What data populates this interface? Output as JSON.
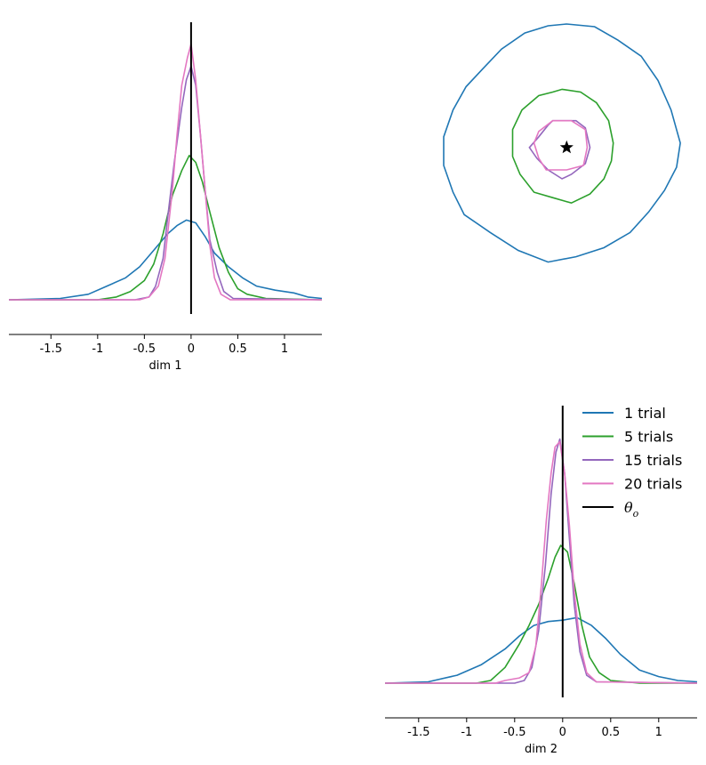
{
  "chart_data": [
    {
      "type": "line",
      "panel": "marginal-dim-1",
      "xlabel": "dim 1",
      "xlim": [
        -1.95,
        1.4
      ],
      "ylim": [
        0,
        1
      ],
      "xticks": [
        -1.5,
        -1,
        -0.5,
        0,
        0.5,
        1
      ],
      "xtick_labels": [
        "-1.5",
        "-1",
        "-0.5",
        "0",
        "0.5",
        "1"
      ],
      "reference_x": 0,
      "series": [
        {
          "key": "t1",
          "color": "#1f77b4",
          "points": [
            [
              -1.95,
              0.0
            ],
            [
              -1.4,
              0.005
            ],
            [
              -1.1,
              0.02
            ],
            [
              -0.9,
              0.05
            ],
            [
              -0.7,
              0.08
            ],
            [
              -0.55,
              0.12
            ],
            [
              -0.4,
              0.18
            ],
            [
              -0.25,
              0.24
            ],
            [
              -0.15,
              0.27
            ],
            [
              -0.05,
              0.29
            ],
            [
              0.05,
              0.28
            ],
            [
              0.15,
              0.23
            ],
            [
              0.25,
              0.17
            ],
            [
              0.4,
              0.12
            ],
            [
              0.55,
              0.08
            ],
            [
              0.7,
              0.05
            ],
            [
              0.9,
              0.035
            ],
            [
              1.1,
              0.025
            ],
            [
              1.25,
              0.01
            ],
            [
              1.4,
              0.005
            ]
          ]
        },
        {
          "key": "t5",
          "color": "#2ca02c",
          "points": [
            [
              -1.95,
              0.0
            ],
            [
              -1.0,
              0.0
            ],
            [
              -0.8,
              0.01
            ],
            [
              -0.65,
              0.03
            ],
            [
              -0.5,
              0.07
            ],
            [
              -0.4,
              0.13
            ],
            [
              -0.3,
              0.24
            ],
            [
              -0.2,
              0.38
            ],
            [
              -0.1,
              0.47
            ],
            [
              -0.02,
              0.525
            ],
            [
              0.05,
              0.5
            ],
            [
              0.12,
              0.43
            ],
            [
              0.2,
              0.32
            ],
            [
              0.3,
              0.19
            ],
            [
              0.4,
              0.1
            ],
            [
              0.5,
              0.04
            ],
            [
              0.6,
              0.02
            ],
            [
              0.8,
              0.005
            ],
            [
              1.4,
              0.0
            ]
          ]
        },
        {
          "key": "t15",
          "color": "#9467bd",
          "points": [
            [
              -1.95,
              0.0
            ],
            [
              -0.6,
              0.0
            ],
            [
              -0.45,
              0.01
            ],
            [
              -0.38,
              0.05
            ],
            [
              -0.3,
              0.15
            ],
            [
              -0.25,
              0.3
            ],
            [
              -0.18,
              0.5
            ],
            [
              -0.1,
              0.7
            ],
            [
              -0.05,
              0.8
            ],
            [
              0.0,
              0.85
            ],
            [
              0.05,
              0.78
            ],
            [
              0.1,
              0.6
            ],
            [
              0.15,
              0.4
            ],
            [
              0.2,
              0.22
            ],
            [
              0.28,
              0.1
            ],
            [
              0.35,
              0.03
            ],
            [
              0.45,
              0.005
            ],
            [
              1.4,
              0.0
            ]
          ]
        },
        {
          "key": "t20",
          "color": "#e377c2",
          "points": [
            [
              -1.95,
              0.0
            ],
            [
              -0.55,
              0.0
            ],
            [
              -0.45,
              0.01
            ],
            [
              -0.35,
              0.05
            ],
            [
              -0.28,
              0.15
            ],
            [
              -0.2,
              0.4
            ],
            [
              -0.15,
              0.6
            ],
            [
              -0.1,
              0.78
            ],
            [
              -0.04,
              0.88
            ],
            [
              0.0,
              0.93
            ],
            [
              0.05,
              0.8
            ],
            [
              0.1,
              0.6
            ],
            [
              0.15,
              0.4
            ],
            [
              0.2,
              0.2
            ],
            [
              0.25,
              0.08
            ],
            [
              0.32,
              0.02
            ],
            [
              0.42,
              0.0
            ],
            [
              1.4,
              0.0
            ]
          ]
        }
      ]
    },
    {
      "type": "line",
      "panel": "joint-contours",
      "xlim": [
        -1.95,
        1.4
      ],
      "ylim": [
        -1.95,
        1.4
      ],
      "true_point": [
        0,
        0
      ],
      "series": [
        {
          "key": "t1",
          "color": "#1f77b4",
          "shape": "closed",
          "points": [
            [
              0.0,
              1.38
            ],
            [
              0.3,
              1.35
            ],
            [
              0.55,
              1.2
            ],
            [
              0.8,
              1.02
            ],
            [
              0.98,
              0.75
            ],
            [
              1.12,
              0.42
            ],
            [
              1.22,
              0.05
            ],
            [
              1.18,
              -0.22
            ],
            [
              1.05,
              -0.48
            ],
            [
              0.88,
              -0.72
            ],
            [
              0.68,
              -0.95
            ],
            [
              0.4,
              -1.12
            ],
            [
              0.1,
              -1.22
            ],
            [
              -0.2,
              -1.28
            ],
            [
              -0.52,
              -1.15
            ],
            [
              -0.82,
              -0.95
            ],
            [
              -1.1,
              -0.75
            ],
            [
              -1.22,
              -0.5
            ],
            [
              -1.32,
              -0.2
            ],
            [
              -1.32,
              0.12
            ],
            [
              -1.22,
              0.42
            ],
            [
              -1.08,
              0.68
            ],
            [
              -0.9,
              0.88
            ],
            [
              -0.7,
              1.1
            ],
            [
              -0.45,
              1.28
            ],
            [
              -0.2,
              1.36
            ]
          ]
        },
        {
          "key": "t5",
          "color": "#2ca02c",
          "shape": "closed",
          "points": [
            [
              -0.05,
              0.65
            ],
            [
              0.15,
              0.62
            ],
            [
              0.32,
              0.5
            ],
            [
              0.45,
              0.3
            ],
            [
              0.5,
              0.05
            ],
            [
              0.48,
              -0.15
            ],
            [
              0.4,
              -0.35
            ],
            [
              0.25,
              -0.52
            ],
            [
              0.05,
              -0.62
            ],
            [
              -0.15,
              -0.56
            ],
            [
              -0.35,
              -0.5
            ],
            [
              -0.5,
              -0.3
            ],
            [
              -0.58,
              -0.1
            ],
            [
              -0.58,
              0.2
            ],
            [
              -0.48,
              0.42
            ],
            [
              -0.3,
              0.58
            ],
            [
              -0.15,
              0.62
            ]
          ]
        },
        {
          "key": "t15",
          "color": "#9467bd",
          "shape": "closed",
          "points": [
            [
              -0.15,
              0.3
            ],
            [
              0.1,
              0.3
            ],
            [
              0.2,
              0.22
            ],
            [
              0.25,
              0.0
            ],
            [
              0.2,
              -0.18
            ],
            [
              0.05,
              -0.3
            ],
            [
              -0.05,
              -0.35
            ],
            [
              -0.2,
              -0.25
            ],
            [
              -0.32,
              -0.12
            ],
            [
              -0.4,
              0.0
            ],
            [
              -0.3,
              0.12
            ],
            [
              -0.2,
              0.25
            ]
          ]
        },
        {
          "key": "t20",
          "color": "#e377c2",
          "shape": "closed",
          "points": [
            [
              -0.15,
              0.3
            ],
            [
              0.05,
              0.3
            ],
            [
              0.2,
              0.2
            ],
            [
              0.22,
              0.0
            ],
            [
              0.18,
              -0.2
            ],
            [
              0.0,
              -0.25
            ],
            [
              -0.22,
              -0.25
            ],
            [
              -0.3,
              -0.12
            ],
            [
              -0.35,
              0.05
            ],
            [
              -0.3,
              0.18
            ]
          ]
        }
      ]
    },
    {
      "type": "line",
      "panel": "marginal-dim-2",
      "xlabel": "dim 2",
      "xlim": [
        -1.85,
        1.4
      ],
      "ylim": [
        0,
        1
      ],
      "xticks": [
        -1.5,
        -1,
        -0.5,
        0,
        0.5,
        1
      ],
      "xtick_labels": [
        "-1.5",
        "-1",
        "-0.5",
        "0",
        "0.5",
        "1"
      ],
      "reference_x": 0,
      "series": [
        {
          "key": "t1",
          "color": "#1f77b4",
          "points": [
            [
              -1.85,
              0.0
            ],
            [
              -1.4,
              0.005
            ],
            [
              -1.1,
              0.03
            ],
            [
              -0.85,
              0.07
            ],
            [
              -0.6,
              0.13
            ],
            [
              -0.45,
              0.18
            ],
            [
              -0.3,
              0.22
            ],
            [
              -0.15,
              0.235
            ],
            [
              0.0,
              0.24
            ],
            [
              0.15,
              0.25
            ],
            [
              0.3,
              0.22
            ],
            [
              0.45,
              0.17
            ],
            [
              0.6,
              0.11
            ],
            [
              0.8,
              0.05
            ],
            [
              1.0,
              0.025
            ],
            [
              1.2,
              0.01
            ],
            [
              1.4,
              0.005
            ]
          ]
        },
        {
          "key": "t5",
          "color": "#2ca02c",
          "points": [
            [
              -1.85,
              0.0
            ],
            [
              -0.9,
              0.0
            ],
            [
              -0.75,
              0.01
            ],
            [
              -0.6,
              0.06
            ],
            [
              -0.45,
              0.15
            ],
            [
              -0.35,
              0.22
            ],
            [
              -0.25,
              0.3
            ],
            [
              -0.15,
              0.4
            ],
            [
              -0.08,
              0.48
            ],
            [
              -0.02,
              0.525
            ],
            [
              0.05,
              0.5
            ],
            [
              0.12,
              0.38
            ],
            [
              0.2,
              0.22
            ],
            [
              0.28,
              0.1
            ],
            [
              0.38,
              0.04
            ],
            [
              0.5,
              0.01
            ],
            [
              0.65,
              0.005
            ],
            [
              0.8,
              0.0
            ],
            [
              1.4,
              0.0
            ]
          ]
        },
        {
          "key": "t15",
          "color": "#9467bd",
          "points": [
            [
              -1.85,
              0.0
            ],
            [
              -0.5,
              0.0
            ],
            [
              -0.4,
              0.01
            ],
            [
              -0.32,
              0.06
            ],
            [
              -0.25,
              0.2
            ],
            [
              -0.18,
              0.45
            ],
            [
              -0.12,
              0.72
            ],
            [
              -0.07,
              0.88
            ],
            [
              -0.03,
              0.93
            ],
            [
              0.02,
              0.8
            ],
            [
              0.07,
              0.55
            ],
            [
              0.12,
              0.3
            ],
            [
              0.18,
              0.12
            ],
            [
              0.25,
              0.03
            ],
            [
              0.35,
              0.005
            ],
            [
              1.4,
              0.0
            ]
          ]
        },
        {
          "key": "t20",
          "color": "#e377c2",
          "points": [
            [
              -1.85,
              0.0
            ],
            [
              -0.7,
              0.0
            ],
            [
              -0.6,
              0.01
            ],
            [
              -0.45,
              0.02
            ],
            [
              -0.35,
              0.04
            ],
            [
              -0.28,
              0.14
            ],
            [
              -0.22,
              0.38
            ],
            [
              -0.17,
              0.62
            ],
            [
              -0.12,
              0.8
            ],
            [
              -0.08,
              0.9
            ],
            [
              -0.03,
              0.92
            ],
            [
              0.02,
              0.8
            ],
            [
              0.07,
              0.6
            ],
            [
              0.12,
              0.35
            ],
            [
              0.18,
              0.15
            ],
            [
              0.25,
              0.04
            ],
            [
              0.35,
              0.005
            ],
            [
              1.4,
              0.0
            ]
          ]
        }
      ]
    }
  ],
  "legend": {
    "items": [
      {
        "key": "t1",
        "label": "1 trial",
        "color": "#1f77b4"
      },
      {
        "key": "t5",
        "label": "5 trials",
        "color": "#2ca02c"
      },
      {
        "key": "t15",
        "label": "15 trials",
        "color": "#9467bd"
      },
      {
        "key": "t20",
        "label": "20 trials",
        "color": "#e377c2"
      }
    ],
    "theta": {
      "symbol": "θ",
      "subscript": "o",
      "color": "#000000"
    }
  }
}
